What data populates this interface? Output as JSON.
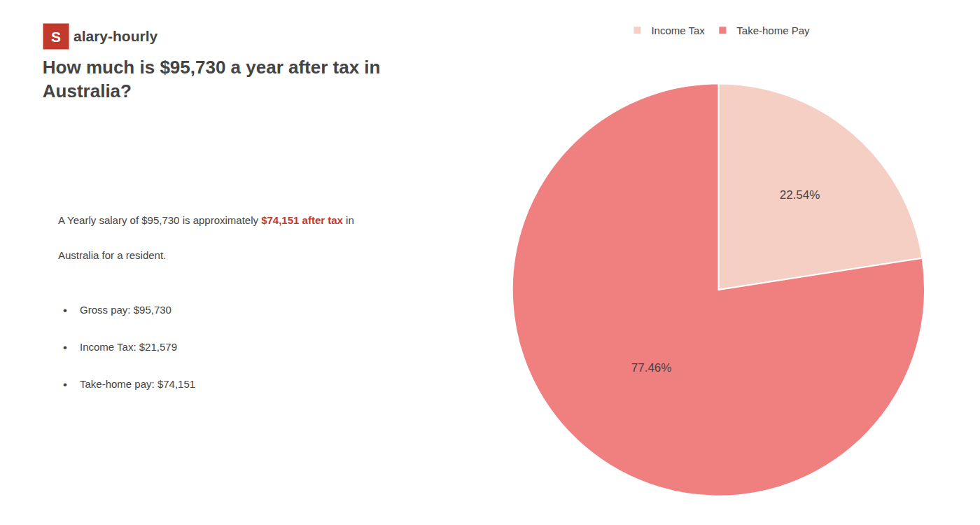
{
  "chart_data": {
    "type": "pie",
    "title": "How much is $95,730 a year after tax in\nAustralia?",
    "categories": [
      "Income Tax",
      "Take-home Pay"
    ],
    "values": [
      22.54,
      77.46
    ],
    "value_labels": [
      "22.54%",
      "77.46%"
    ],
    "data_labels": true,
    "colors": [
      "#f5cfc4",
      "#f08080"
    ],
    "legend": "top",
    "annotations": [
      [
        {
          "text": "S",
          "color": "#c0392b"
        },
        {
          "text": "alary-hourly"
        }
      ],
      [
        {
          "text": "A Yearly salary of $95,730 is approximately "
        },
        {
          "text": "$74,151 after tax",
          "color": "#c0392b"
        },
        {
          "text": " in"
        }
      ],
      [
        {
          "text": "Australia for a resident."
        }
      ],
      [
        {
          "text": "•"
        },
        {
          "text": "Gross pay: $95,730"
        }
      ],
      [
        {
          "text": "•"
        },
        {
          "text": "Income Tax: $21,579"
        }
      ],
      [
        {
          "text": "•"
        },
        {
          "text": "Take-home pay: $74,151"
        }
      ]
    ]
  }
}
